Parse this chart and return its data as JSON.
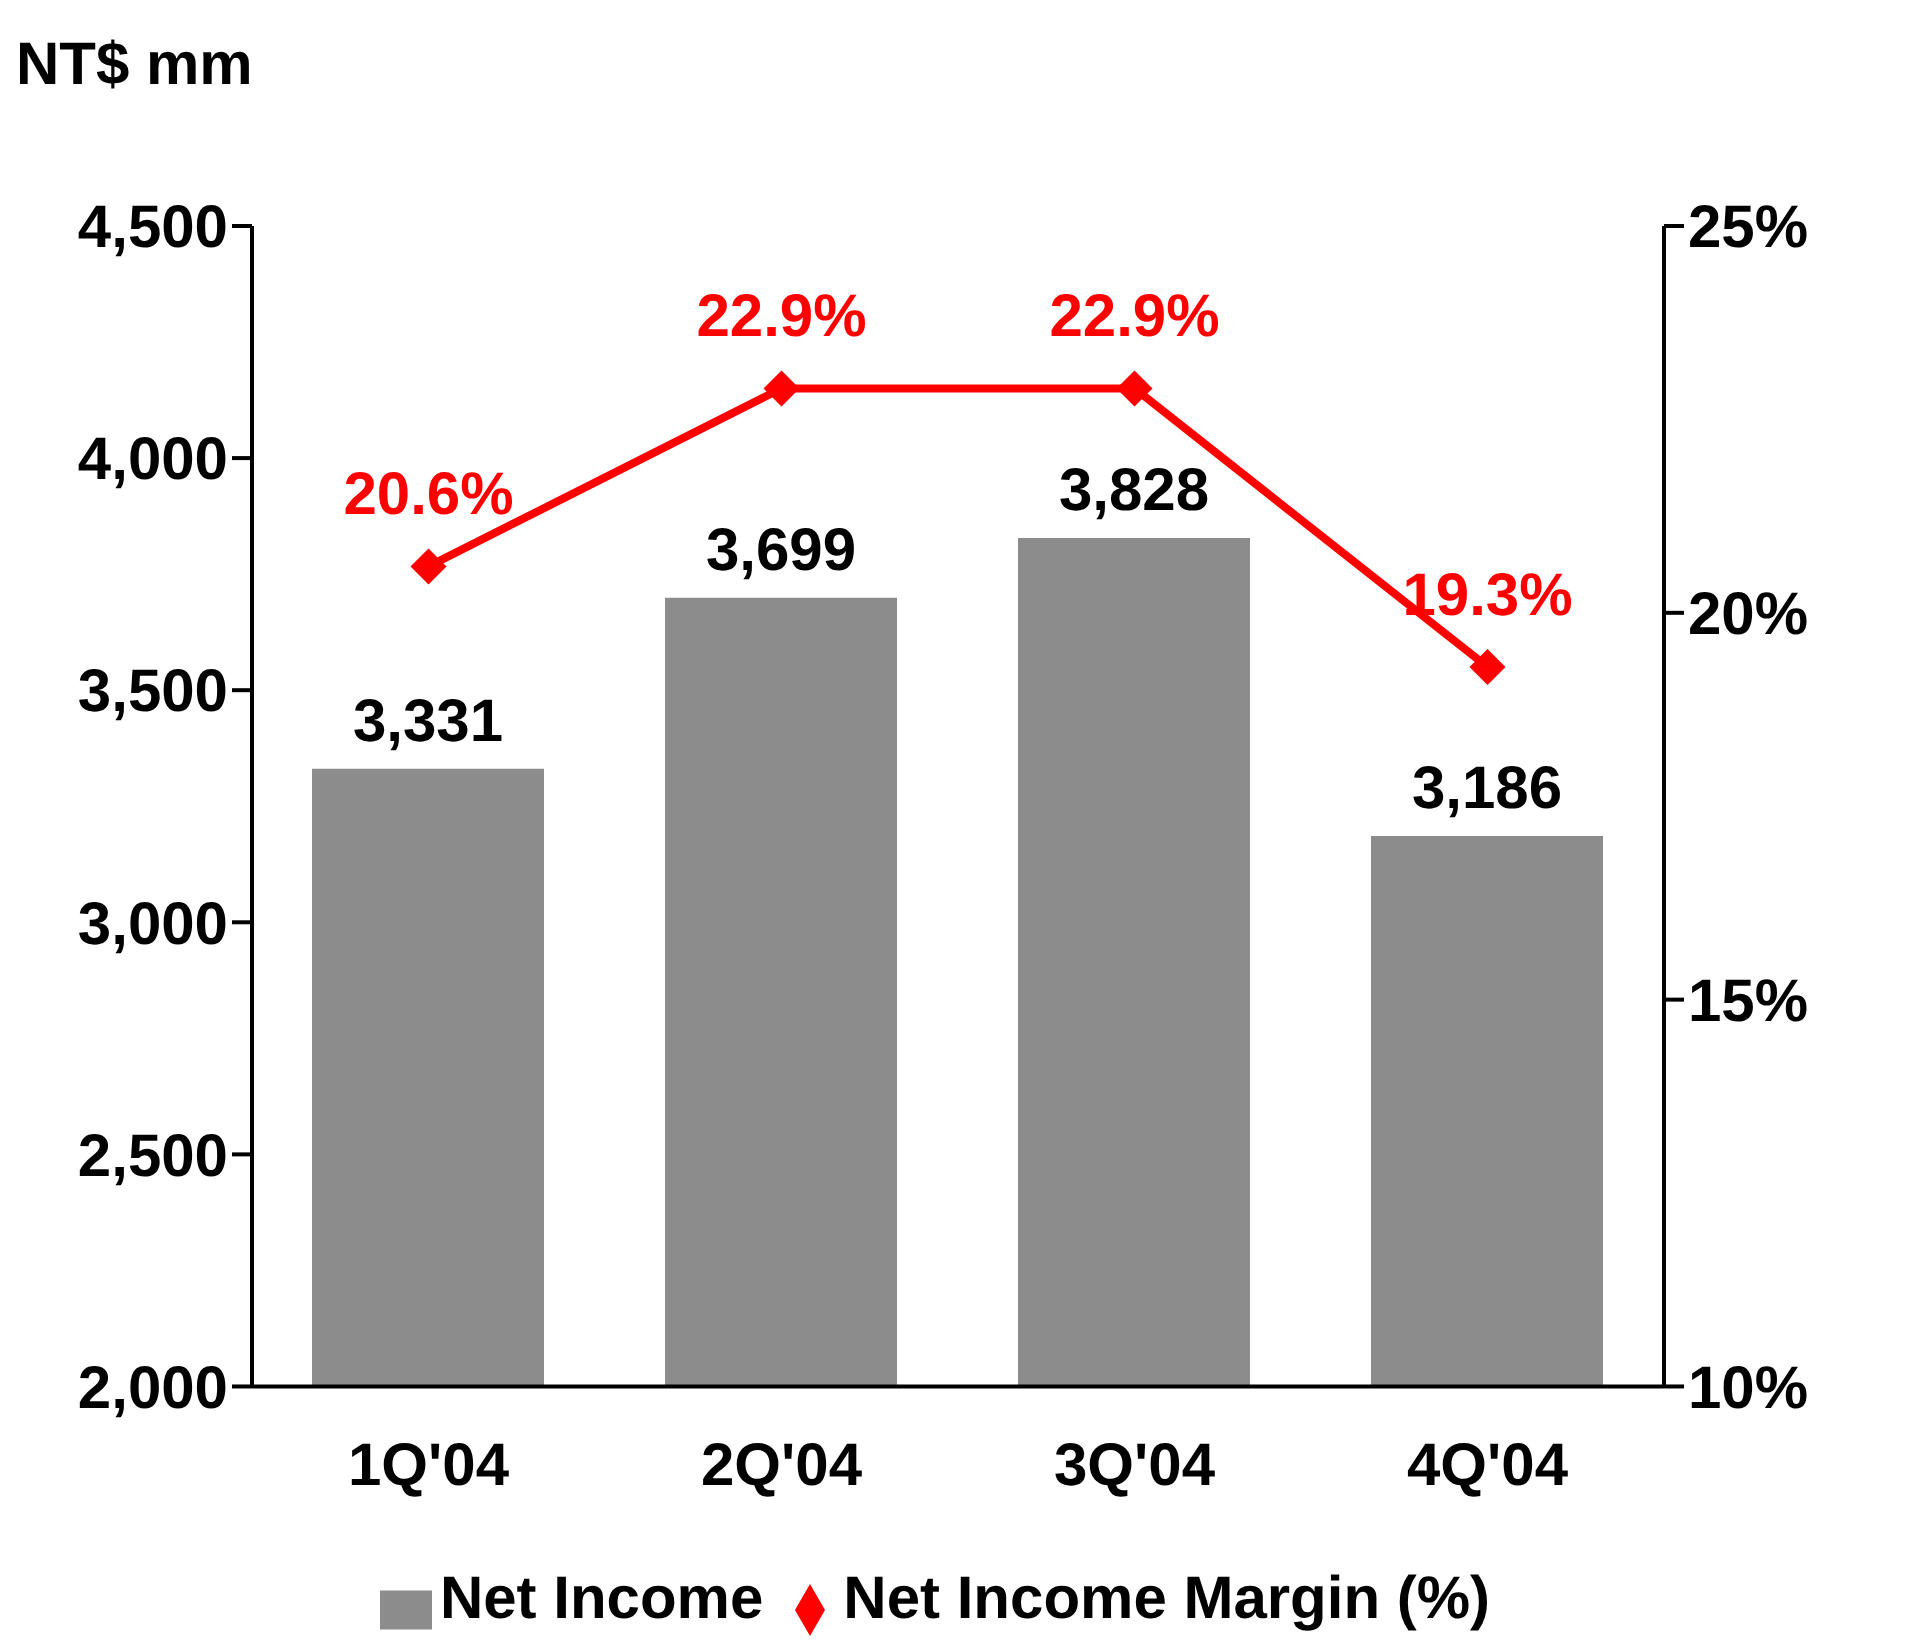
{
  "chart_data": {
    "type": "bar",
    "ylabel": "NT$ mm",
    "categories": [
      "1Q'04",
      "2Q'04",
      "3Q'04",
      "4Q'04"
    ],
    "series": [
      {
        "name": "Net Income",
        "color": "#8c8c8c",
        "values": [
          3331,
          3699,
          3828,
          3186
        ],
        "value_labels": [
          "3,331",
          "3,699",
          "3,828",
          "3,186"
        ]
      },
      {
        "name": "Net Income Margin (%)",
        "type": "line",
        "axis": "y2",
        "color": "#ff0000",
        "marker": "diamond",
        "values": [
          20.6,
          22.9,
          22.9,
          19.3
        ],
        "value_labels": [
          "20.6%",
          "22.9%",
          "22.9%",
          "19.3%"
        ]
      }
    ],
    "ylim": [
      2000,
      4500
    ],
    "yticks": [
      {
        "value": 2000,
        "label": "2,000"
      },
      {
        "value": 2500,
        "label": "2,500"
      },
      {
        "value": 3000,
        "label": "3,000"
      },
      {
        "value": 3500,
        "label": "3,500"
      },
      {
        "value": 4000,
        "label": "4,000"
      },
      {
        "value": 4500,
        "label": "4,500"
      }
    ],
    "y2lim": [
      10,
      25
    ],
    "y2ticks": [
      {
        "value": 10,
        "label": "10%"
      },
      {
        "value": 15,
        "label": "15%"
      },
      {
        "value": 20,
        "label": "20%"
      },
      {
        "value": 25,
        "label": "25%"
      }
    ],
    "grid": false,
    "legend": "bottom"
  }
}
